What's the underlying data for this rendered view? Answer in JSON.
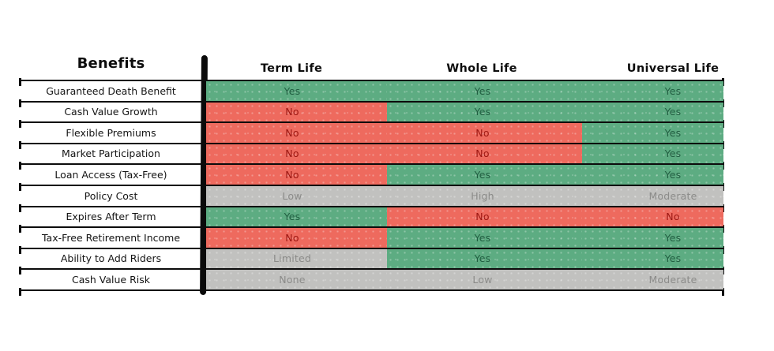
{
  "title": "Benefits",
  "chart_data": {
    "type": "table",
    "title": "Benefits",
    "columns": [
      "Term Life",
      "Whole Life",
      "Universal Life"
    ],
    "rows": [
      {
        "label": "Guaranteed Death Benefit",
        "cells": [
          {
            "text": "Yes",
            "state": "yes"
          },
          {
            "text": "Yes",
            "state": "yes"
          },
          {
            "text": "Yes",
            "state": "yes"
          }
        ]
      },
      {
        "label": "Cash Value Growth",
        "cells": [
          {
            "text": "No",
            "state": "no"
          },
          {
            "text": "Yes",
            "state": "yes"
          },
          {
            "text": "Yes",
            "state": "yes"
          }
        ]
      },
      {
        "label": "Flexible Premiums",
        "cells": [
          {
            "text": "No",
            "state": "no"
          },
          {
            "text": "No",
            "state": "no"
          },
          {
            "text": "Yes",
            "state": "yes"
          }
        ]
      },
      {
        "label": "Market Participation",
        "cells": [
          {
            "text": "No",
            "state": "no"
          },
          {
            "text": "No",
            "state": "no"
          },
          {
            "text": "Yes",
            "state": "yes"
          }
        ]
      },
      {
        "label": "Loan Access (Tax-Free)",
        "cells": [
          {
            "text": "No",
            "state": "no"
          },
          {
            "text": "Yes",
            "state": "yes"
          },
          {
            "text": "Yes",
            "state": "yes"
          }
        ]
      },
      {
        "label": "Policy Cost",
        "cells": [
          {
            "text": "Low",
            "state": "neutral"
          },
          {
            "text": "High",
            "state": "neutral"
          },
          {
            "text": "Moderate",
            "state": "neutral"
          }
        ]
      },
      {
        "label": "Expires After Term",
        "cells": [
          {
            "text": "Yes",
            "state": "yes"
          },
          {
            "text": "No",
            "state": "no"
          },
          {
            "text": "No",
            "state": "no"
          }
        ]
      },
      {
        "label": "Tax-Free Retirement Income",
        "cells": [
          {
            "text": "No",
            "state": "no"
          },
          {
            "text": "Yes",
            "state": "yes"
          },
          {
            "text": "Yes",
            "state": "yes"
          }
        ]
      },
      {
        "label": "Ability to Add Riders",
        "cells": [
          {
            "text": "Limited",
            "state": "neutral"
          },
          {
            "text": "Yes",
            "state": "yes"
          },
          {
            "text": "Yes",
            "state": "yes"
          }
        ]
      },
      {
        "label": "Cash Value Risk",
        "cells": [
          {
            "text": "None",
            "state": "neutral"
          },
          {
            "text": "Low",
            "state": "neutral"
          },
          {
            "text": "Moderate",
            "state": "neutral"
          }
        ]
      }
    ]
  },
  "colors": {
    "yes_bg": "#5dac82",
    "yes_text": "#215e41",
    "no_bg": "#ee6a5e",
    "no_text": "#9c1712",
    "neutral_bg": "#c1c1bf",
    "neutral_text": "#8b8b89",
    "line": "#0c0c0c"
  }
}
